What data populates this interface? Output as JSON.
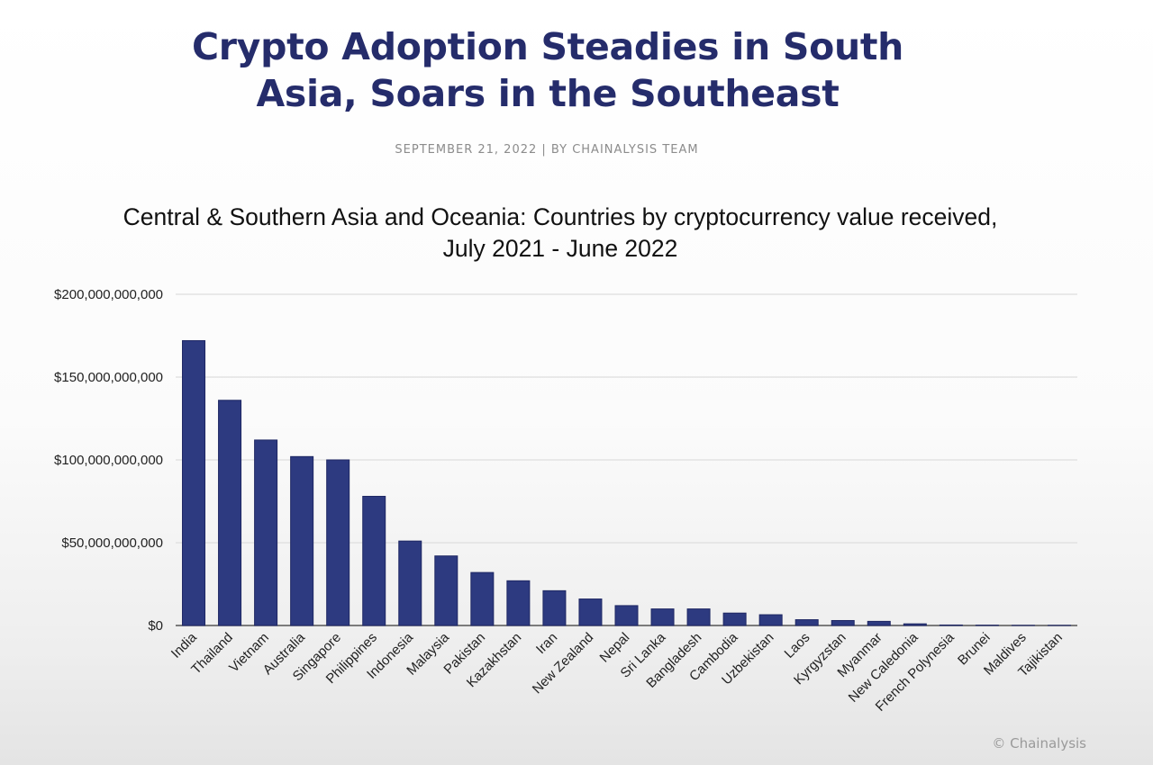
{
  "page": {
    "headline_line1": "Crypto Adoption Steadies in South",
    "headline_line2": "Asia, Soars in the Southeast",
    "byline": "SEPTEMBER 21, 2022 | BY CHAINALYSIS TEAM",
    "credit": "© Chainalysis"
  },
  "colors": {
    "headline": "#252c6b",
    "bar": "#2d3a80",
    "bar_edge": "#1e2763",
    "grid": "#dddddd",
    "axis": "#555555"
  },
  "chart_data": {
    "type": "bar",
    "title_line1": "Central & Southern Asia and Oceania: Countries by cryptocurrency value received,",
    "title_line2": "July 2021 - June 2022",
    "xlabel": "",
    "ylabel": "",
    "ylim": [
      0,
      200000000000
    ],
    "yticks": [
      {
        "value": 0,
        "label": "$0"
      },
      {
        "value": 50000000000,
        "label": "$50,000,000,000"
      },
      {
        "value": 100000000000,
        "label": "$100,000,000,000"
      },
      {
        "value": 150000000000,
        "label": "$150,000,000,000"
      },
      {
        "value": 200000000000,
        "label": "$200,000,000,000"
      }
    ],
    "grid": true,
    "legend": "none",
    "categories": [
      "India",
      "Thailand",
      "Vietnam",
      "Australia",
      "Singapore",
      "Philippines",
      "Indonesia",
      "Malaysia",
      "Pakistan",
      "Kazakhstan",
      "Iran",
      "New Zealand",
      "Nepal",
      "Sri Lanka",
      "Bangladesh",
      "Cambodia",
      "Uzbekistan",
      "Laos",
      "Kyrgyzstan",
      "Myanmar",
      "New Caledonia",
      "French Polynesia",
      "Brunei",
      "Maldives",
      "Tajikistan"
    ],
    "values": [
      172000000000,
      136000000000,
      112000000000,
      102000000000,
      100000000000,
      78000000000,
      51000000000,
      42000000000,
      32000000000,
      27000000000,
      21000000000,
      16000000000,
      12000000000,
      10000000000,
      10000000000,
      7500000000,
      6500000000,
      3500000000,
      3000000000,
      2500000000,
      1000000000,
      300000000,
      200000000,
      100000000,
      100000000
    ]
  }
}
